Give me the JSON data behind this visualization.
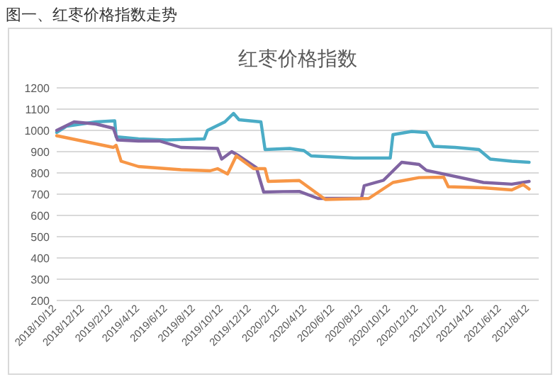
{
  "chart_data": {
    "type": "line",
    "title": "红枣价格指数",
    "annotations": [
      "图一、红枣价格指数走势"
    ],
    "xlim": [
      "2018-10-12",
      "2021-09-01"
    ],
    "ylim": [
      200,
      1200
    ],
    "yticks": [
      200,
      300,
      400,
      500,
      600,
      700,
      800,
      900,
      1000,
      1100,
      1200
    ],
    "xticks": [
      {
        "value": "2018-10-12",
        "label": "2018/10/12"
      },
      {
        "value": "2018-12-12",
        "label": "2018/12/12"
      },
      {
        "value": "2019-02-12",
        "label": "2019/2/12"
      },
      {
        "value": "2019-04-12",
        "label": "2019/4/12"
      },
      {
        "value": "2019-06-12",
        "label": "2019/6/12"
      },
      {
        "value": "2019-08-12",
        "label": "2019/8/12"
      },
      {
        "value": "2019-10-12",
        "label": "2019/10/12"
      },
      {
        "value": "2019-12-12",
        "label": "2019/12/12"
      },
      {
        "value": "2020-02-12",
        "label": "2020/2/12"
      },
      {
        "value": "2020-04-12",
        "label": "2020/4/12"
      },
      {
        "value": "2020-06-12",
        "label": "2020/6/12"
      },
      {
        "value": "2020-08-12",
        "label": "2020/8/12"
      },
      {
        "value": "2020-10-12",
        "label": "2020/10/12"
      },
      {
        "value": "2020-12-12",
        "label": "2020/12/12"
      },
      {
        "value": "2021-02-12",
        "label": "2021/2/12"
      },
      {
        "value": "2021-04-12",
        "label": "2021/4/12"
      },
      {
        "value": "2021-06-12",
        "label": "2021/6/12"
      },
      {
        "value": "2021-08-12",
        "label": "2021/8/12"
      }
    ],
    "grid": "y",
    "line_style": "solid",
    "series": [
      {
        "color": "#4bacc6",
        "x": [
          "2018-10-12",
          "2018-11-03",
          "2018-12-05",
          "2019-01-06",
          "2019-02-16",
          "2019-02-19",
          "2019-04-09",
          "2019-06-10",
          "2019-08-31",
          "2019-09-07",
          "2019-10-15",
          "2019-11-03",
          "2019-11-15",
          "2020-01-02",
          "2020-01-11",
          "2020-03-05",
          "2020-04-05",
          "2020-04-21",
          "2020-07-24",
          "2020-10-11",
          "2020-10-17",
          "2020-11-27",
          "2020-12-29",
          "2021-01-14",
          "2021-03-02",
          "2021-04-23",
          "2021-05-18",
          "2021-07-04",
          "2021-08-11"
        ],
        "values": [
          990,
          1020,
          1030,
          1040,
          1045,
          970,
          960,
          955,
          960,
          1000,
          1040,
          1080,
          1050,
          1040,
          910,
          915,
          905,
          880,
          870,
          870,
          980,
          995,
          990,
          925,
          920,
          910,
          865,
          855,
          850
        ]
      },
      {
        "color": "#8064a2",
        "x": [
          "2018-10-12",
          "2018-11-19",
          "2019-01-06",
          "2019-02-13",
          "2019-02-22",
          "2019-04-09",
          "2019-05-25",
          "2019-07-11",
          "2019-09-29",
          "2019-10-08",
          "2019-10-30",
          "2019-11-15",
          "2019-12-23",
          "2020-01-08",
          "2020-02-19",
          "2020-03-26",
          "2020-05-06",
          "2020-08-09",
          "2020-08-15",
          "2020-09-26",
          "2020-11-05",
          "2020-12-13",
          "2020-12-29",
          "2021-05-03",
          "2021-07-04",
          "2021-08-11"
        ],
        "values": [
          1000,
          1040,
          1030,
          1010,
          955,
          950,
          950,
          920,
          915,
          865,
          900,
          880,
          825,
          710,
          712,
          713,
          680,
          680,
          740,
          765,
          850,
          840,
          812,
          755,
          747,
          760
        ]
      },
      {
        "color": "#f79646",
        "x": [
          "2018-10-12",
          "2019-02-13",
          "2019-02-19",
          "2019-03-02",
          "2019-04-09",
          "2019-07-11",
          "2019-09-13",
          "2019-09-29",
          "2019-10-21",
          "2019-11-09",
          "2019-12-17",
          "2020-01-11",
          "2020-01-18",
          "2020-03-26",
          "2020-05-22",
          "2020-08-25",
          "2020-10-17",
          "2020-12-13",
          "2021-02-05",
          "2021-02-15",
          "2021-05-03",
          "2021-07-04",
          "2021-07-29",
          "2021-08-11"
        ],
        "values": [
          975,
          920,
          930,
          855,
          830,
          815,
          810,
          820,
          795,
          880,
          820,
          820,
          760,
          764,
          675,
          680,
          755,
          778,
          780,
          735,
          730,
          720,
          745,
          724
        ]
      }
    ]
  }
}
